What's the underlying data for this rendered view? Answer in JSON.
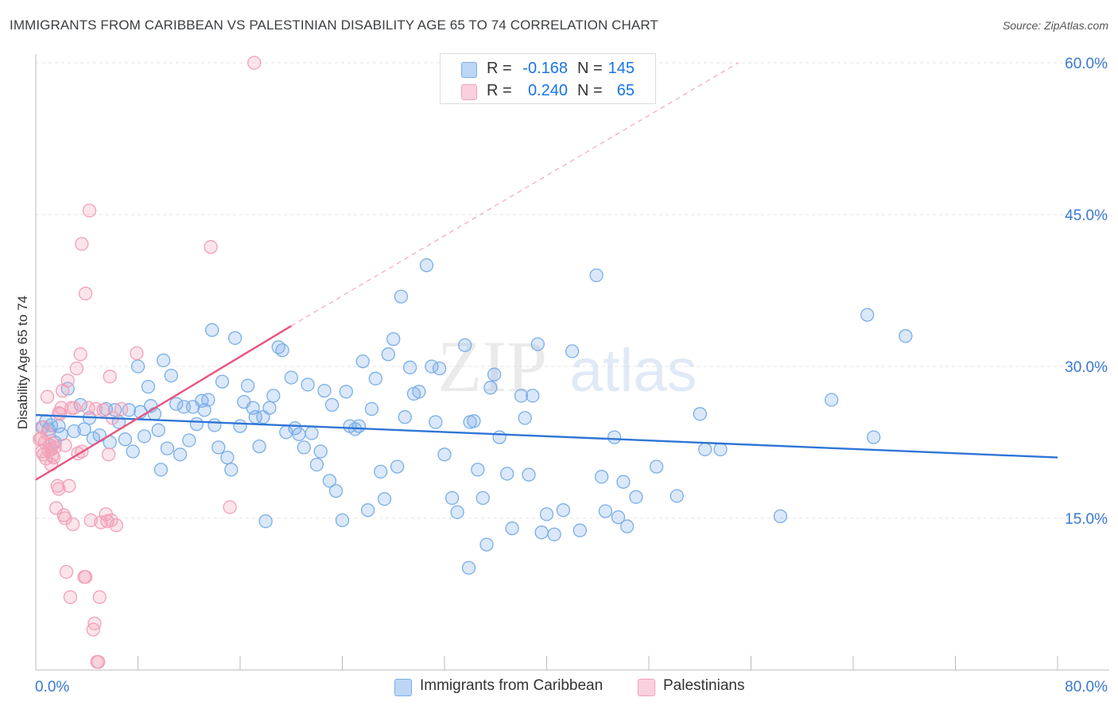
{
  "title": "IMMIGRANTS FROM CARIBBEAN VS PALESTINIAN DISABILITY AGE 65 TO 74 CORRELATION CHART",
  "source": "Source: ZipAtlas.com",
  "watermark": {
    "zip": "ZIP",
    "atlas": "atlas"
  },
  "legend_top": {
    "rows": [
      {
        "r_label": "R =",
        "r_value": "-0.168",
        "n_label": "N =",
        "n_value": "145",
        "color": "#a8c8f0"
      },
      {
        "r_label": "R =",
        "r_value": "0.240",
        "n_label": "N =",
        "n_value": "65",
        "color": "#f7b8cc"
      }
    ]
  },
  "legend_bottom": [
    {
      "label": "Immigrants from Caribbean",
      "color": "#a8c8f0"
    },
    {
      "label": "Palestinians",
      "color": "#f7b8cc"
    }
  ],
  "chart_data": {
    "type": "scatter",
    "ylabel": "Disability Age 65 to 74",
    "xlim": [
      0,
      80
    ],
    "ylim": [
      0,
      63
    ],
    "x_tick_labels": [
      {
        "value": 0,
        "label": "0.0%"
      },
      {
        "value": 80,
        "label": "80.0%"
      }
    ],
    "y_tick_labels": [
      {
        "value": 15,
        "label": "15.0%"
      },
      {
        "value": 30,
        "label": "30.0%"
      },
      {
        "value": 45,
        "label": "45.0%"
      },
      {
        "value": 60,
        "label": "60.0%"
      }
    ],
    "grid": true,
    "series": [
      {
        "name": "Immigrants from Caribbean",
        "color": "#7aaee8",
        "line_color": "#2f75d6",
        "trend": {
          "x0": 0,
          "y0": 25.2,
          "x1": 80,
          "y1": 21.0
        },
        "points": [
          [
            0.5,
            24.0
          ],
          [
            0.8,
            24.6
          ],
          [
            1.0,
            23.8
          ],
          [
            1.2,
            24.2
          ],
          [
            1.5,
            22.5
          ],
          [
            1.8,
            24.1
          ],
          [
            2.0,
            23.3
          ],
          [
            2.5,
            27.8
          ],
          [
            3.0,
            23.6
          ],
          [
            3.5,
            26.2
          ],
          [
            3.8,
            23.8
          ],
          [
            4.2,
            24.9
          ],
          [
            4.5,
            22.9
          ],
          [
            5.0,
            23.2
          ],
          [
            5.5,
            25.8
          ],
          [
            5.8,
            22.5
          ],
          [
            6.2,
            25.7
          ],
          [
            6.5,
            24.5
          ],
          [
            7.0,
            22.8
          ],
          [
            7.3,
            25.7
          ],
          [
            7.6,
            21.6
          ],
          [
            8.0,
            30.0
          ],
          [
            8.2,
            25.5
          ],
          [
            8.5,
            23.1
          ],
          [
            8.8,
            28.0
          ],
          [
            9.0,
            26.1
          ],
          [
            9.3,
            25.3
          ],
          [
            9.6,
            23.7
          ],
          [
            9.8,
            19.8
          ],
          [
            10.0,
            30.6
          ],
          [
            10.3,
            21.9
          ],
          [
            10.6,
            29.1
          ],
          [
            11.0,
            26.3
          ],
          [
            11.3,
            21.3
          ],
          [
            11.6,
            26.0
          ],
          [
            12.0,
            22.7
          ],
          [
            12.3,
            26.0
          ],
          [
            12.6,
            24.3
          ],
          [
            13.0,
            26.6
          ],
          [
            13.2,
            25.7
          ],
          [
            13.5,
            26.7
          ],
          [
            13.8,
            33.6
          ],
          [
            14.0,
            24.2
          ],
          [
            14.3,
            22.0
          ],
          [
            14.6,
            28.5
          ],
          [
            15.0,
            21.0
          ],
          [
            15.3,
            19.8
          ],
          [
            15.6,
            32.8
          ],
          [
            16.0,
            24.1
          ],
          [
            16.3,
            26.5
          ],
          [
            16.6,
            28.1
          ],
          [
            17.0,
            25.9
          ],
          [
            17.2,
            25.0
          ],
          [
            17.5,
            22.1
          ],
          [
            17.8,
            25.0
          ],
          [
            18.0,
            14.7
          ],
          [
            18.3,
            25.9
          ],
          [
            18.6,
            27.1
          ],
          [
            19.0,
            31.9
          ],
          [
            19.3,
            31.6
          ],
          [
            19.6,
            23.5
          ],
          [
            20.0,
            28.9
          ],
          [
            20.3,
            23.9
          ],
          [
            20.6,
            23.3
          ],
          [
            21.0,
            22.0
          ],
          [
            21.3,
            28.2
          ],
          [
            21.6,
            23.4
          ],
          [
            22.0,
            20.3
          ],
          [
            22.3,
            21.6
          ],
          [
            22.6,
            27.6
          ],
          [
            23.0,
            18.7
          ],
          [
            23.2,
            26.2
          ],
          [
            23.5,
            17.7
          ],
          [
            24.0,
            14.8
          ],
          [
            24.3,
            27.5
          ],
          [
            24.6,
            24.1
          ],
          [
            25.0,
            23.8
          ],
          [
            25.3,
            24.1
          ],
          [
            25.6,
            30.5
          ],
          [
            26.0,
            15.8
          ],
          [
            26.3,
            25.8
          ],
          [
            26.6,
            28.8
          ],
          [
            27.0,
            19.6
          ],
          [
            27.3,
            16.9
          ],
          [
            27.6,
            31.2
          ],
          [
            28.0,
            32.7
          ],
          [
            28.3,
            20.1
          ],
          [
            28.6,
            36.9
          ],
          [
            28.9,
            25.0
          ],
          [
            29.3,
            29.9
          ],
          [
            29.6,
            27.3
          ],
          [
            30.0,
            27.5
          ],
          [
            30.6,
            40.0
          ],
          [
            31.0,
            30.0
          ],
          [
            31.3,
            24.5
          ],
          [
            31.6,
            29.8
          ],
          [
            32.0,
            21.3
          ],
          [
            32.6,
            17.0
          ],
          [
            33.0,
            15.6
          ],
          [
            33.6,
            32.1
          ],
          [
            34.0,
            24.5
          ],
          [
            34.3,
            24.6
          ],
          [
            34.6,
            19.8
          ],
          [
            35.0,
            17.0
          ],
          [
            35.3,
            12.4
          ],
          [
            35.6,
            27.9
          ],
          [
            35.9,
            29.2
          ],
          [
            36.3,
            23.0
          ],
          [
            36.9,
            19.4
          ],
          [
            37.3,
            14.0
          ],
          [
            38.0,
            27.1
          ],
          [
            38.3,
            24.9
          ],
          [
            38.6,
            19.3
          ],
          [
            38.9,
            27.1
          ],
          [
            39.3,
            32.2
          ],
          [
            39.6,
            13.6
          ],
          [
            40.0,
            15.4
          ],
          [
            40.6,
            13.4
          ],
          [
            41.3,
            15.8
          ],
          [
            42.0,
            31.5
          ],
          [
            42.6,
            13.8
          ],
          [
            43.9,
            39.0
          ],
          [
            44.3,
            19.1
          ],
          [
            44.6,
            15.7
          ],
          [
            45.3,
            23.0
          ],
          [
            45.6,
            15.1
          ],
          [
            46.0,
            18.6
          ],
          [
            46.3,
            14.2
          ],
          [
            47.0,
            17.1
          ],
          [
            48.6,
            20.1
          ],
          [
            50.2,
            17.2
          ],
          [
            52.0,
            25.3
          ],
          [
            52.4,
            21.8
          ],
          [
            53.6,
            21.8
          ],
          [
            58.3,
            15.2
          ],
          [
            62.3,
            26.7
          ],
          [
            65.1,
            35.1
          ],
          [
            65.6,
            23.0
          ],
          [
            68.1,
            33.0
          ],
          [
            33.9,
            10.1
          ]
        ]
      },
      {
        "name": "Palestinians",
        "color": "#f2a0b8",
        "line_color": "#e8557f",
        "trend": {
          "x0": 0,
          "y0": 18.8,
          "x1": 20,
          "y1": 34.0
        },
        "trend_dashed": {
          "x0": 20,
          "y0": 34.0,
          "x1": 55,
          "y1": 60.0
        },
        "points": [
          [
            0.3,
            22.8
          ],
          [
            0.5,
            21.6
          ],
          [
            0.6,
            24.0
          ],
          [
            0.7,
            22.5
          ],
          [
            0.8,
            20.9
          ],
          [
            0.9,
            23.4
          ],
          [
            1.0,
            21.7
          ],
          [
            1.1,
            22.2
          ],
          [
            1.2,
            20.3
          ],
          [
            1.3,
            21.2
          ],
          [
            1.4,
            21.0
          ],
          [
            1.5,
            22.0
          ],
          [
            1.6,
            16.0
          ],
          [
            1.7,
            18.2
          ],
          [
            1.8,
            17.9
          ],
          [
            1.9,
            25.3
          ],
          [
            2.0,
            25.9
          ],
          [
            2.1,
            27.6
          ],
          [
            2.2,
            15.3
          ],
          [
            2.3,
            15.0
          ],
          [
            2.4,
            9.7
          ],
          [
            2.5,
            28.6
          ],
          [
            2.6,
            18.2
          ],
          [
            2.7,
            7.2
          ],
          [
            2.8,
            25.9
          ],
          [
            2.9,
            14.4
          ],
          [
            3.0,
            25.9
          ],
          [
            3.2,
            29.8
          ],
          [
            3.3,
            21.4
          ],
          [
            3.5,
            31.2
          ],
          [
            3.6,
            21.6
          ],
          [
            3.8,
            9.2
          ],
          [
            3.9,
            37.2
          ],
          [
            4.1,
            25.9
          ],
          [
            4.2,
            45.4
          ],
          [
            4.3,
            14.8
          ],
          [
            4.5,
            4.0
          ],
          [
            4.6,
            4.6
          ],
          [
            4.7,
            25.8
          ],
          [
            4.8,
            0.8
          ],
          [
            4.9,
            0.8
          ],
          [
            5.0,
            7.2
          ],
          [
            5.1,
            14.6
          ],
          [
            5.3,
            25.7
          ],
          [
            5.5,
            15.4
          ],
          [
            5.6,
            14.7
          ],
          [
            5.7,
            21.3
          ],
          [
            5.8,
            29.0
          ],
          [
            5.9,
            14.8
          ],
          [
            6.0,
            24.9
          ],
          [
            6.3,
            14.3
          ],
          [
            6.7,
            25.8
          ],
          [
            7.9,
            31.3
          ],
          [
            13.7,
            41.8
          ],
          [
            15.2,
            16.1
          ],
          [
            17.1,
            60.0
          ],
          [
            3.6,
            42.1
          ],
          [
            0.9,
            27.0
          ],
          [
            1.3,
            22.4
          ],
          [
            0.4,
            22.9
          ],
          [
            3.9,
            9.2
          ],
          [
            0.6,
            21.3
          ],
          [
            1.2,
            21.8
          ],
          [
            2.3,
            22.2
          ],
          [
            1.8,
            25.4
          ]
        ]
      }
    ]
  }
}
